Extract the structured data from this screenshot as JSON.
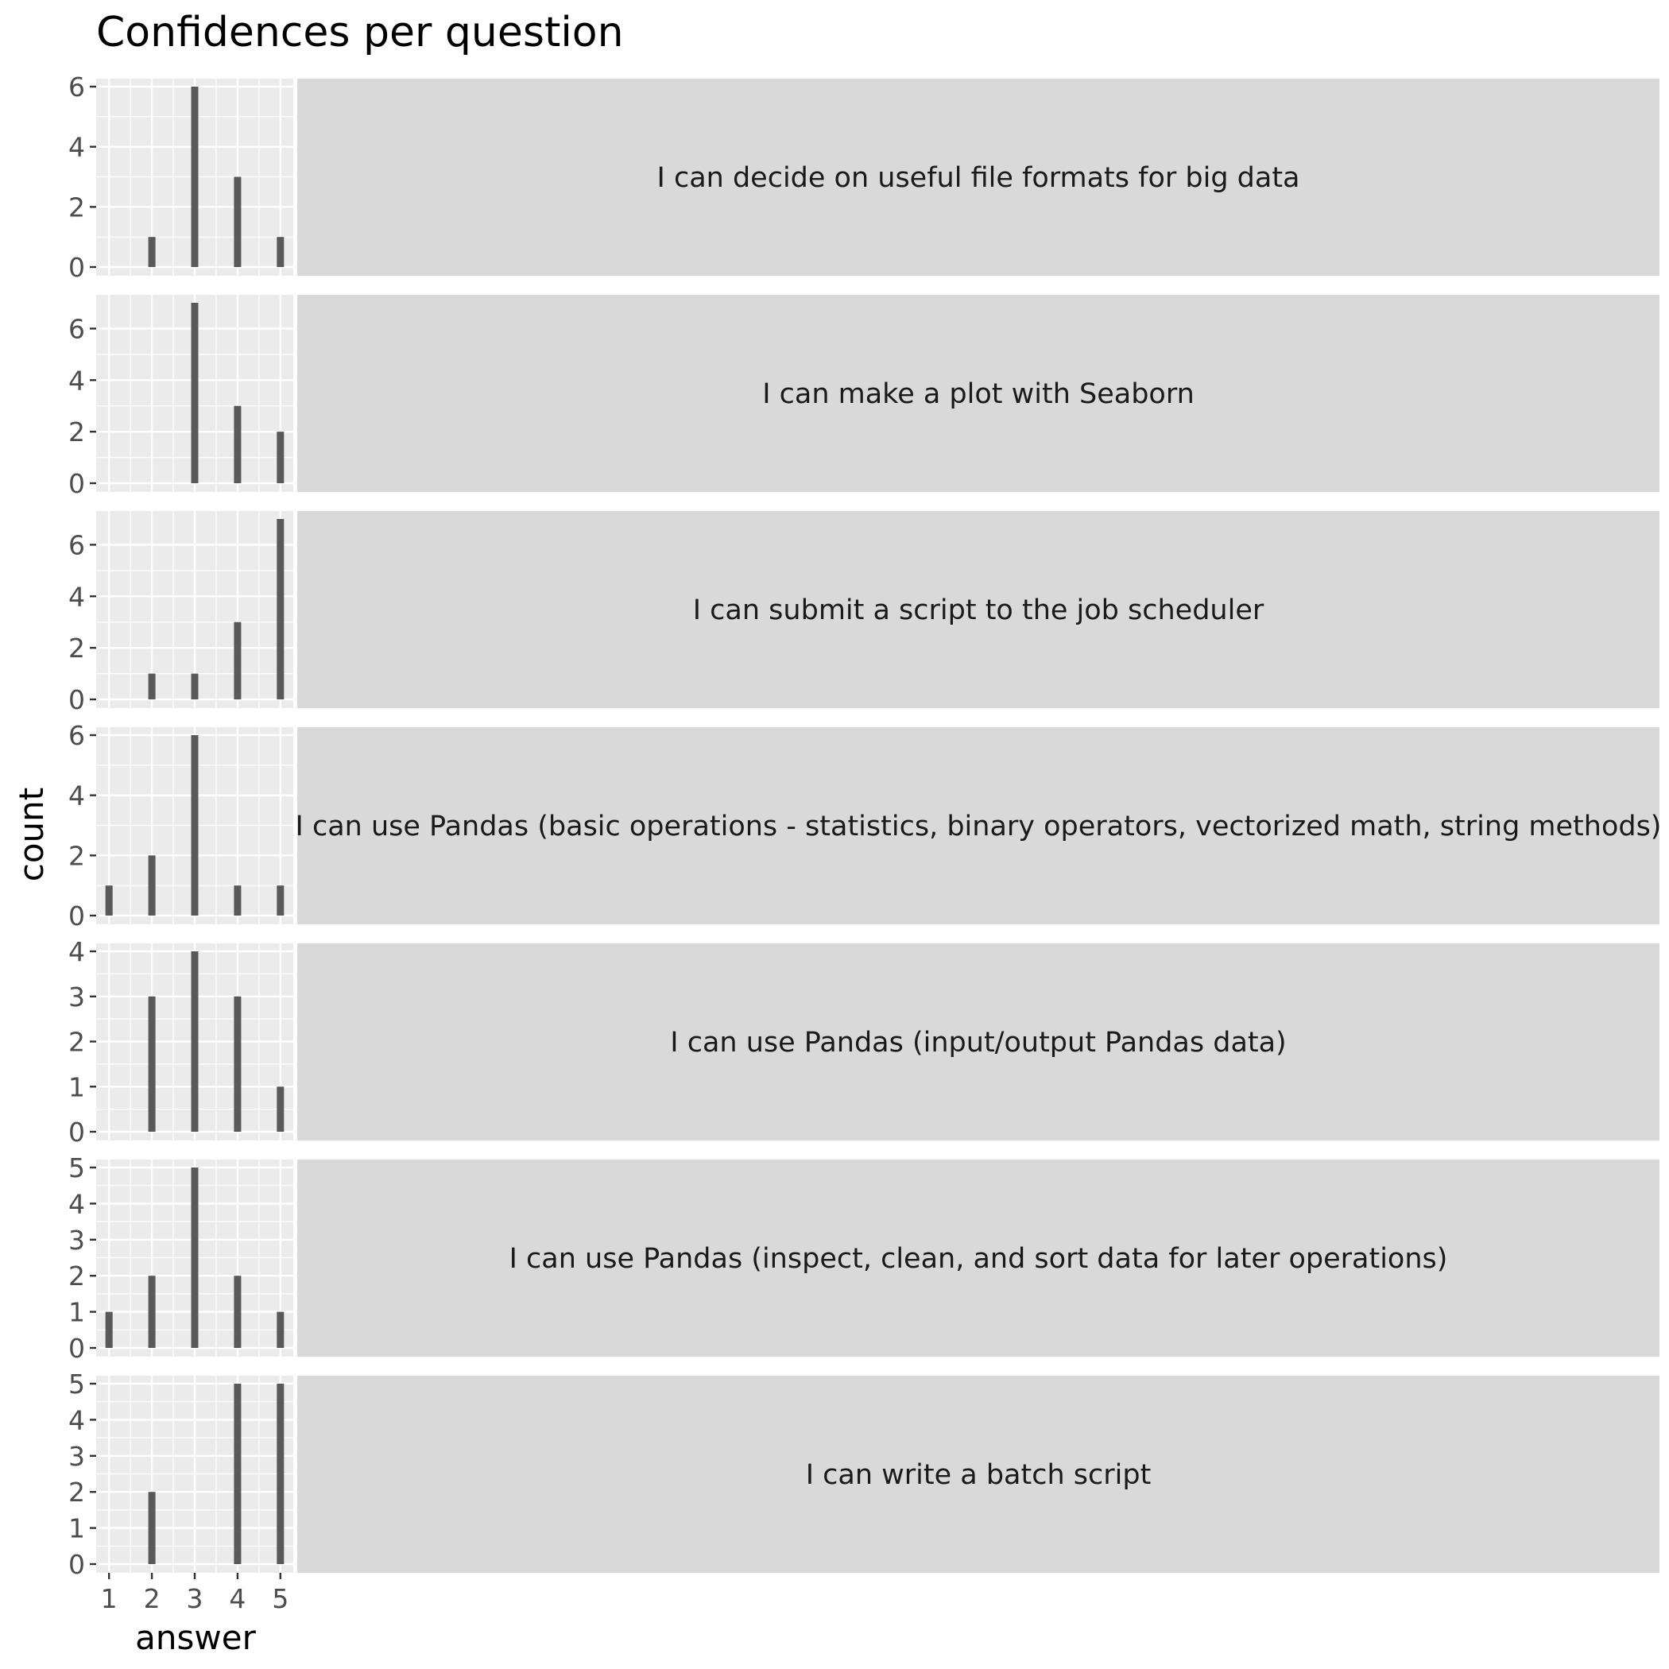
{
  "chart_data": {
    "type": "bar",
    "title": "Confidences per question",
    "xlabel": "answer",
    "ylabel": "count",
    "x_ticks": [
      1,
      2,
      3,
      4,
      5
    ],
    "xlim": [
      0.7,
      5.3
    ],
    "grid": true,
    "facet_strip_position": "right",
    "bar_color": "#595959",
    "panel_background": "#ebebeb",
    "strip_background": "#d9d9d9",
    "facets": [
      {
        "label": "I can decide on useful file formats for big data",
        "ylim": [
          0,
          6
        ],
        "y_ticks": [
          0,
          2,
          4,
          6
        ],
        "points": [
          {
            "x": 2,
            "y": 1
          },
          {
            "x": 3,
            "y": 6
          },
          {
            "x": 4,
            "y": 3
          },
          {
            "x": 5,
            "y": 1
          }
        ]
      },
      {
        "label": "I can make a plot with Seaborn",
        "ylim": [
          0,
          7
        ],
        "y_ticks": [
          0,
          2,
          4,
          6
        ],
        "points": [
          {
            "x": 3,
            "y": 7
          },
          {
            "x": 4,
            "y": 3
          },
          {
            "x": 5,
            "y": 2
          }
        ]
      },
      {
        "label": "I can submit a script to the job scheduler",
        "ylim": [
          0,
          7
        ],
        "y_ticks": [
          0,
          2,
          4,
          6
        ],
        "points": [
          {
            "x": 2,
            "y": 1
          },
          {
            "x": 3,
            "y": 1
          },
          {
            "x": 4,
            "y": 3
          },
          {
            "x": 5,
            "y": 7
          }
        ]
      },
      {
        "label": "I can use Pandas (basic operations - statistics, binary operators, vectorized math, string methods)",
        "ylim": [
          0,
          6
        ],
        "y_ticks": [
          0,
          2,
          4,
          6
        ],
        "points": [
          {
            "x": 1,
            "y": 1
          },
          {
            "x": 2,
            "y": 2
          },
          {
            "x": 3,
            "y": 6
          },
          {
            "x": 4,
            "y": 1
          },
          {
            "x": 5,
            "y": 1
          }
        ]
      },
      {
        "label": "I can use Pandas (input/output Pandas data)",
        "ylim": [
          0,
          4
        ],
        "y_ticks": [
          0,
          1,
          2,
          3,
          4
        ],
        "points": [
          {
            "x": 2,
            "y": 3
          },
          {
            "x": 3,
            "y": 4
          },
          {
            "x": 4,
            "y": 3
          },
          {
            "x": 5,
            "y": 1
          }
        ]
      },
      {
        "label": "I can use Pandas (inspect, clean, and sort data for later operations)",
        "ylim": [
          0,
          5
        ],
        "y_ticks": [
          0,
          1,
          2,
          3,
          4,
          5
        ],
        "points": [
          {
            "x": 1,
            "y": 1
          },
          {
            "x": 2,
            "y": 2
          },
          {
            "x": 3,
            "y": 5
          },
          {
            "x": 4,
            "y": 2
          },
          {
            "x": 5,
            "y": 1
          }
        ]
      },
      {
        "label": "I can write a batch script",
        "ylim": [
          0,
          5
        ],
        "y_ticks": [
          0,
          1,
          2,
          3,
          4,
          5
        ],
        "points": [
          {
            "x": 2,
            "y": 2
          },
          {
            "x": 4,
            "y": 5
          },
          {
            "x": 5,
            "y": 5
          }
        ]
      }
    ]
  }
}
